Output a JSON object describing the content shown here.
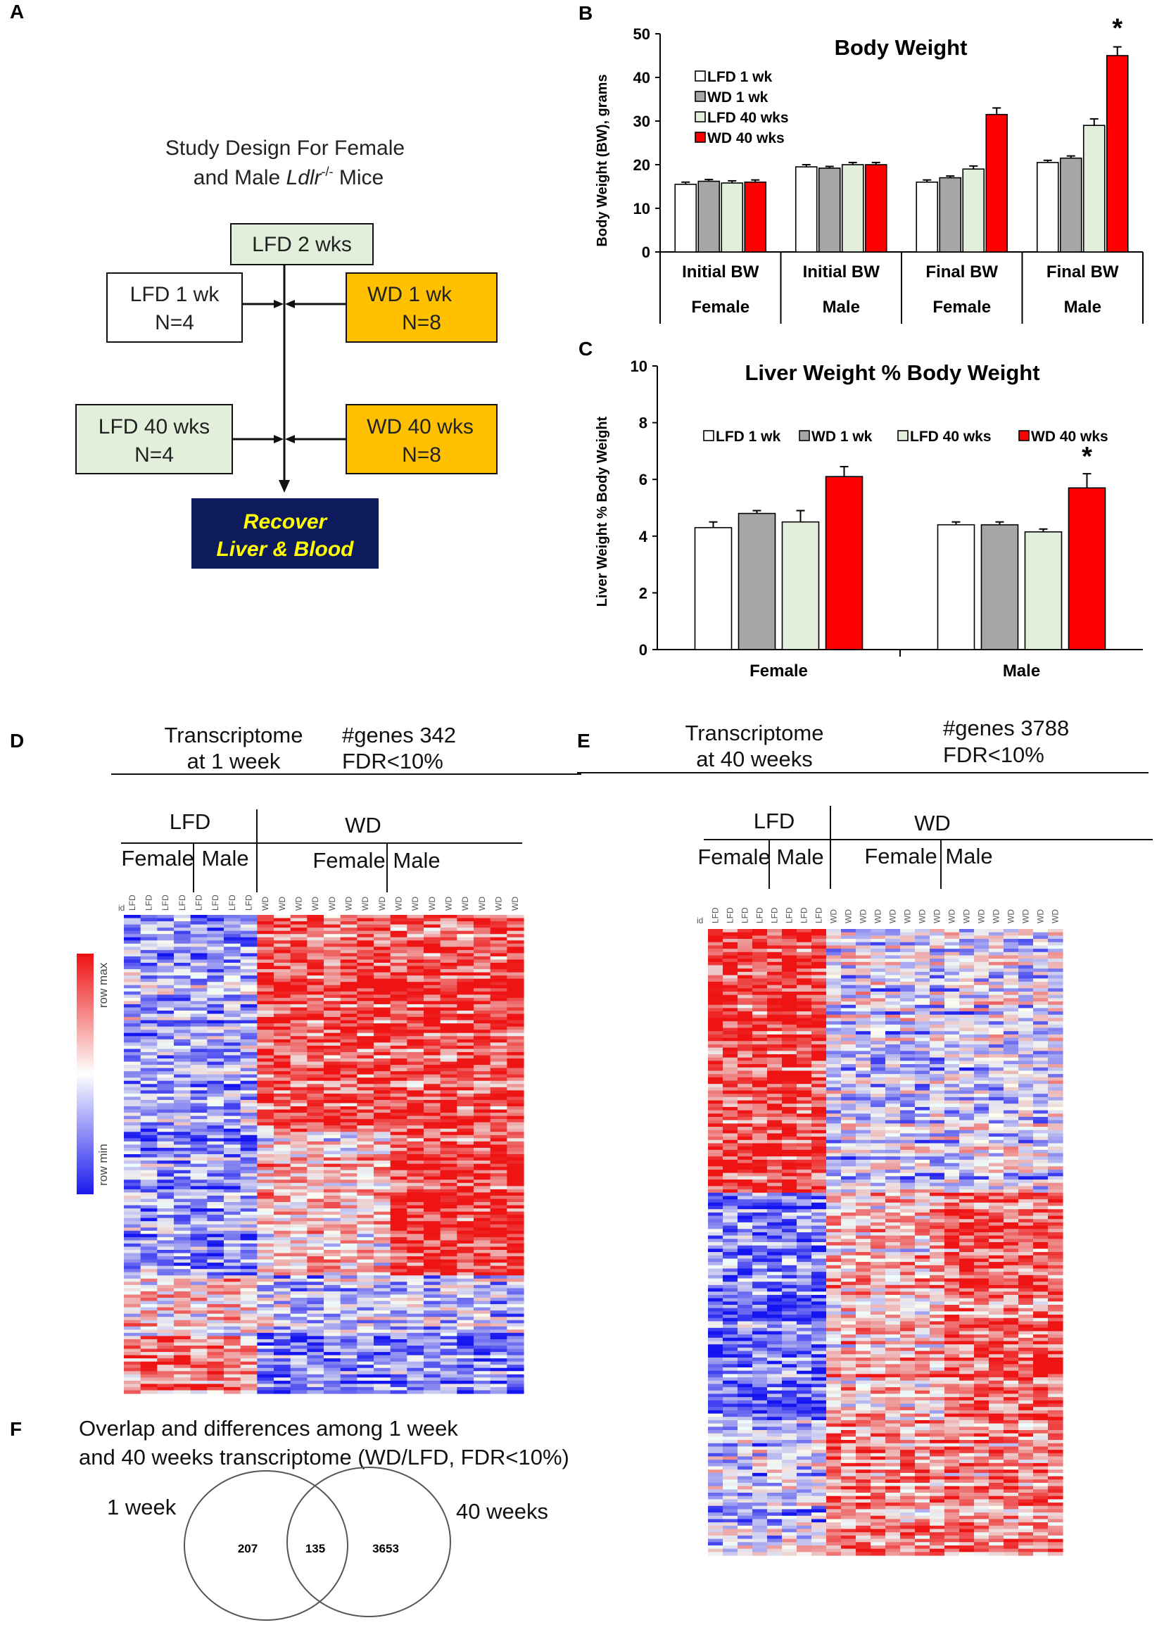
{
  "panels": {
    "a": "A",
    "b": "B",
    "c": "C",
    "d": "D",
    "e": "E",
    "f": "F"
  },
  "design": {
    "title_line1": "Study Design For Female",
    "title_line2_pre": "and Male ",
    "title_gene": "Ldlr",
    "title_sup": "-/-",
    "title_post": " Mice",
    "lfd2": "LFD 2 wks",
    "lfd1_a": "LFD 1 wk",
    "lfd1_b": "N=4",
    "wd1_a": "WD 1 wk",
    "wd1_b": "N=8",
    "lfd40_a": "LFD 40 wks",
    "lfd40_b": "N=4",
    "wd40_a": "WD 40 wks",
    "wd40_b": "N=8",
    "recover_a": "Recover",
    "recover_b": "Liver & Blood",
    "colors": {
      "lfd": "#e2efda",
      "wd": "#ffc000",
      "recover": "#0d1b5c",
      "recover_text": "#ffff00"
    }
  },
  "chart_data": [
    {
      "id": "B",
      "type": "bar",
      "title": "Body Weight",
      "ylabel": "Body Weight (BW), grams",
      "ylim": [
        0,
        50
      ],
      "yticks": [
        0,
        10,
        20,
        30,
        40,
        50
      ],
      "categories": [
        "Initial BW|Female",
        "Initial BW|Male",
        "Final BW|Female",
        "Final BW|Male"
      ],
      "cat_top": [
        "Initial BW",
        "Initial BW",
        "Final BW",
        "Final BW"
      ],
      "cat_bottom": [
        "Female",
        "Male",
        "Female",
        "Male"
      ],
      "series": [
        {
          "name": "LFD 1 wk",
          "color": "#ffffff",
          "values": [
            15.5,
            19.5,
            16,
            20.5
          ],
          "errors": [
            0.5,
            0.5,
            0.5,
            0.5
          ]
        },
        {
          "name": "WD 1 wk",
          "color": "#a6a6a6",
          "values": [
            16.2,
            19.2,
            17,
            21.5
          ],
          "errors": [
            0.4,
            0.4,
            0.4,
            0.5
          ]
        },
        {
          "name": "LFD 40 wks",
          "color": "#e2efda",
          "values": [
            15.8,
            20,
            19,
            29
          ],
          "errors": [
            0.5,
            0.5,
            0.7,
            1.5
          ]
        },
        {
          "name": "WD 40 wks",
          "color": "#ff0000",
          "values": [
            16,
            20,
            31.5,
            45
          ],
          "errors": [
            0.5,
            0.5,
            1.5,
            2
          ]
        }
      ],
      "star": "*",
      "legend_position": "top-left"
    },
    {
      "id": "C",
      "type": "bar",
      "title": "Liver Weight % Body Weight",
      "ylabel": "Liver Weight % Body Weight",
      "ylim": [
        0,
        10
      ],
      "yticks": [
        0,
        2,
        4,
        6,
        8,
        10
      ],
      "categories": [
        "Female",
        "Male"
      ],
      "series": [
        {
          "name": "LFD 1 wk",
          "color": "#ffffff",
          "values": [
            4.3,
            4.4
          ],
          "errors": [
            0.2,
            0.1
          ]
        },
        {
          "name": "WD 1 wk",
          "color": "#a6a6a6",
          "values": [
            4.8,
            4.4
          ],
          "errors": [
            0.1,
            0.1
          ]
        },
        {
          "name": "LFD 40 wks",
          "color": "#e2efda",
          "values": [
            4.5,
            4.15
          ],
          "errors": [
            0.4,
            0.1
          ]
        },
        {
          "name": "WD 40 wks",
          "color": "#ff0000",
          "values": [
            6.1,
            5.7
          ],
          "errors": [
            0.35,
            0.5
          ]
        }
      ],
      "star": "*",
      "legend_position": "top"
    }
  ],
  "heat_d": {
    "title1": "Transcriptome",
    "title2": "at 1 week",
    "genes": "#genes 342",
    "fdr": "FDR<10%",
    "group_lfd": "LFD",
    "group_wd": "WD",
    "female": "Female",
    "male": "Male",
    "id": "id",
    "columns": [
      "LFD",
      "LFD",
      "LFD",
      "LFD",
      "LFD",
      "LFD",
      "LFD",
      "LFD",
      "WD",
      "WD",
      "WD",
      "WD",
      "WD",
      "WD",
      "WD",
      "WD",
      "WD",
      "WD",
      "WD",
      "WD",
      "WD",
      "WD",
      "WD",
      "WD"
    ],
    "row_max": "row max",
    "row_min": "row min"
  },
  "heat_e": {
    "title1": "Transcriptome",
    "title2": "at 40 weeks",
    "genes": "#genes 3788",
    "fdr": "FDR<10%",
    "group_lfd": "LFD",
    "group_wd": "WD",
    "female": "Female",
    "male": "Male",
    "id": "id",
    "columns": [
      "LFD",
      "LFD",
      "LFD",
      "LFD",
      "LFD",
      "LFD",
      "LFD",
      "LFD",
      "WD",
      "WD",
      "WD",
      "WD",
      "WD",
      "WD",
      "WD",
      "WD",
      "WD",
      "WD",
      "WD",
      "WD",
      "WD",
      "WD",
      "WD",
      "WD"
    ]
  },
  "venn": {
    "title1": "Overlap and differences among 1 week",
    "title2": "and 40 weeks transcriptome (WD/LFD, FDR<10%)",
    "left_label": "1 week",
    "right_label": "40 weeks",
    "left_only": "207",
    "overlap": "135",
    "right_only": "3653"
  }
}
